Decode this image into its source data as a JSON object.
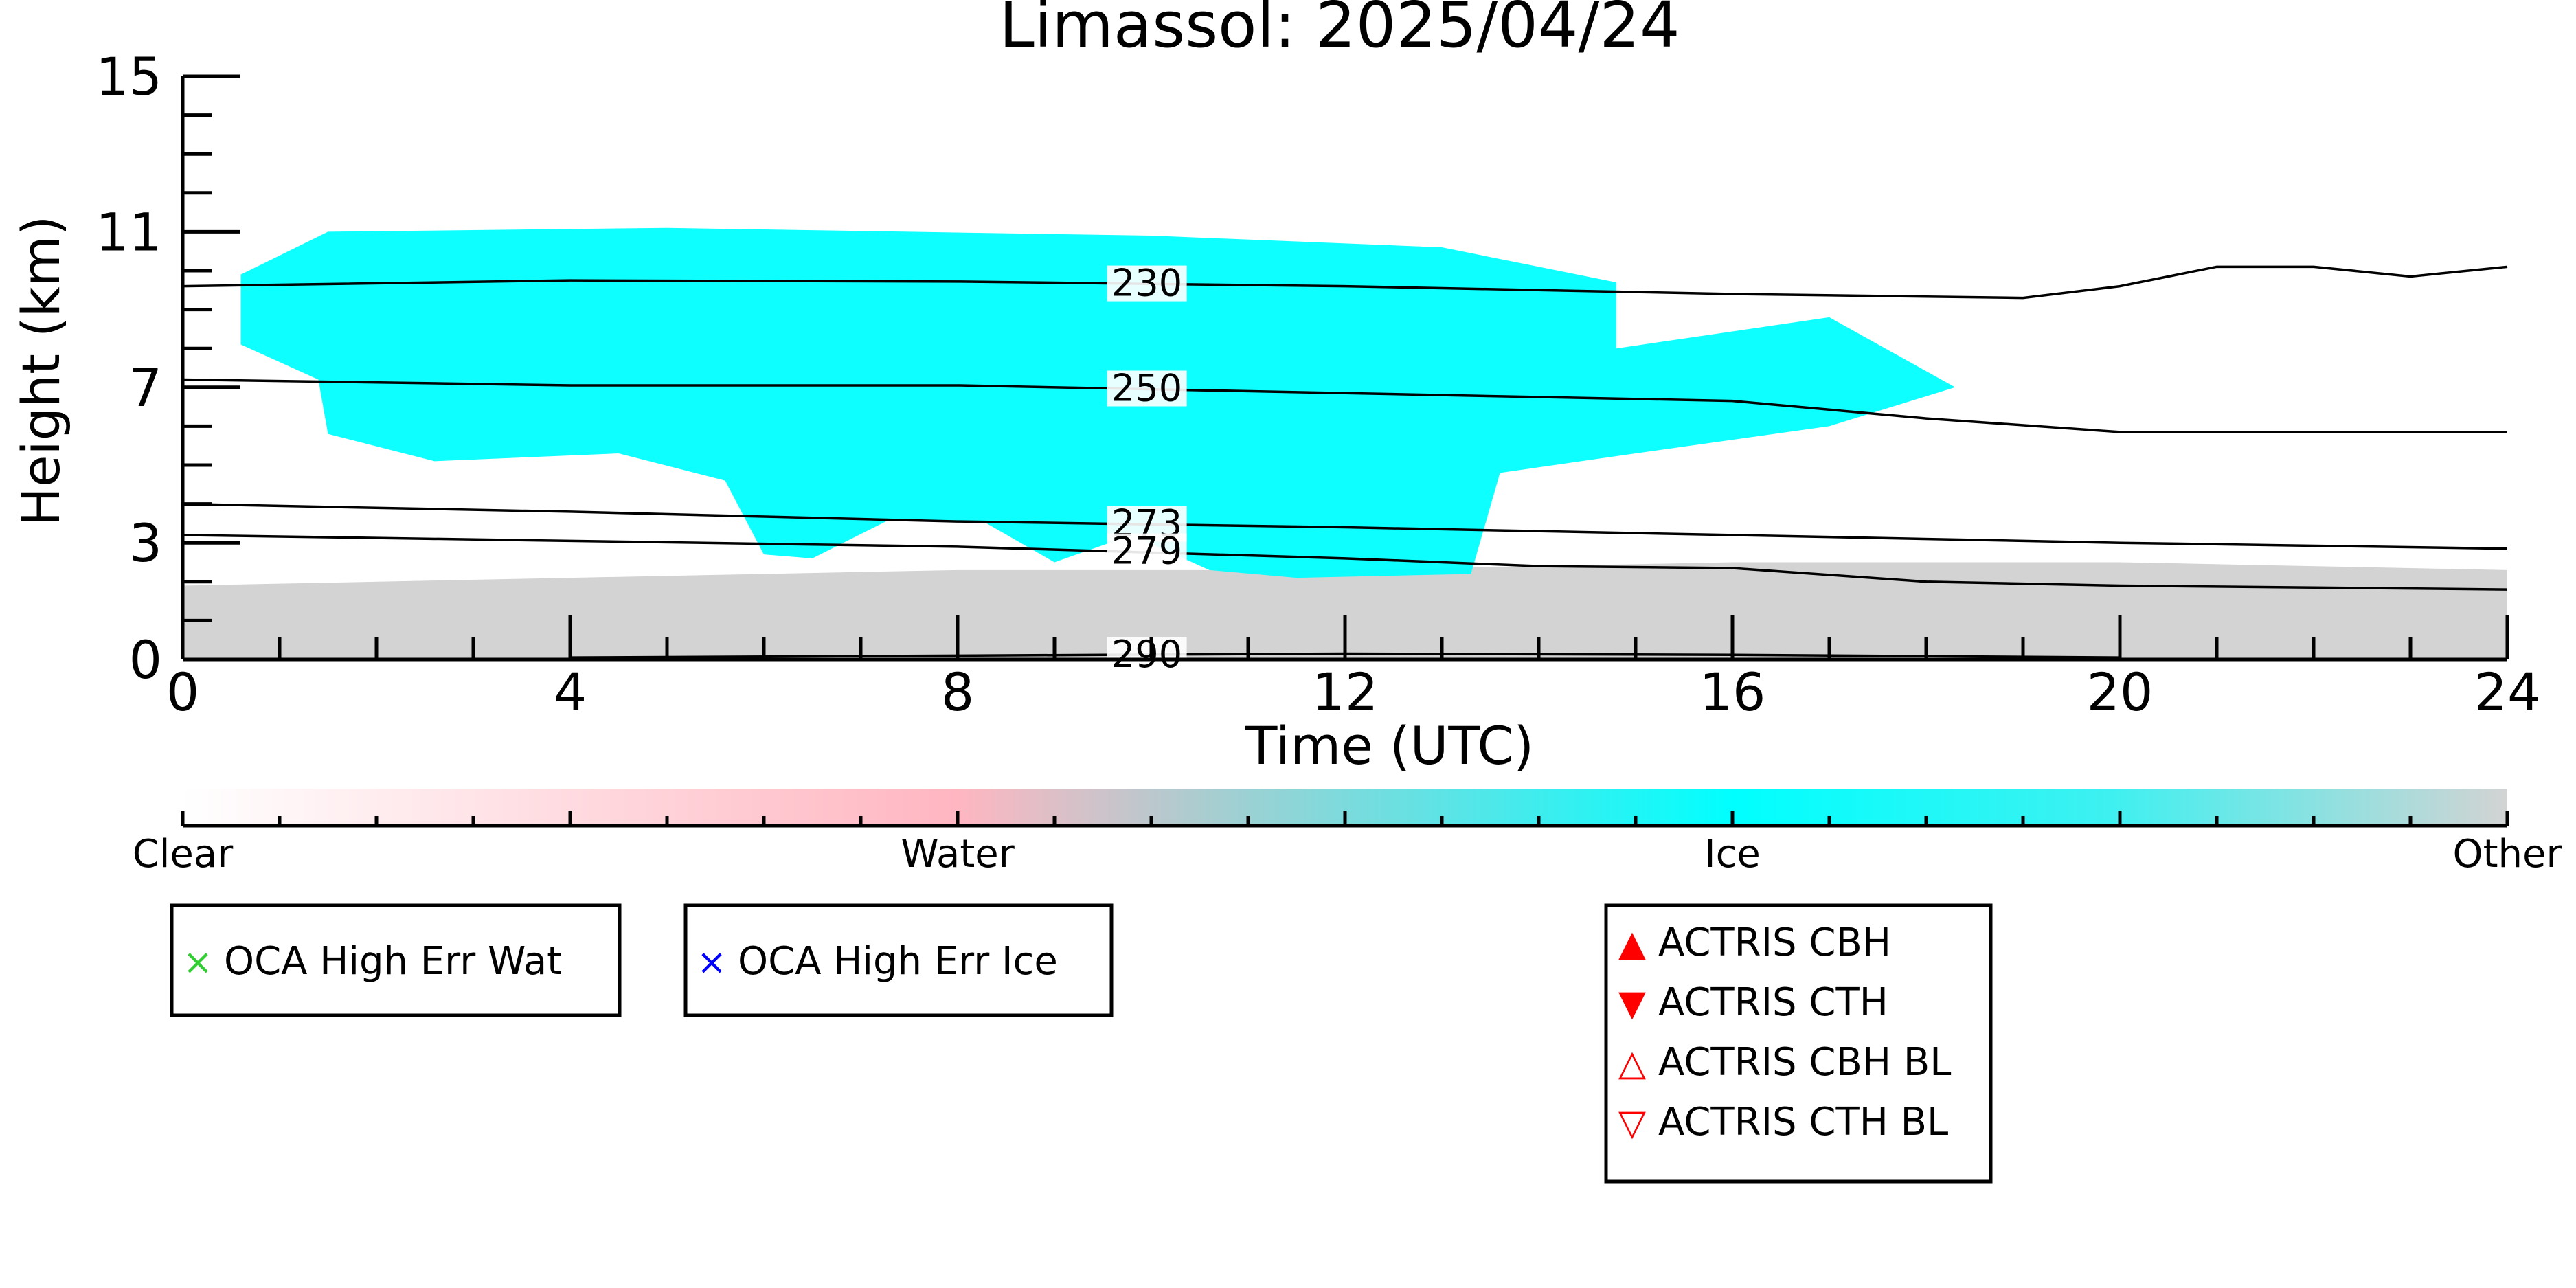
{
  "chart_data": {
    "type": "heatmap",
    "title": "Limassol: 2025/04/24",
    "xlabel": "Time (UTC)",
    "ylabel": "Height (km)",
    "xlim": [
      0,
      24
    ],
    "ylim": [
      0,
      15
    ],
    "x_ticks": [
      "0",
      "4",
      "8",
      "12",
      "16",
      "20",
      "24"
    ],
    "y_ticks": [
      "0",
      "3",
      "7",
      "11",
      "15"
    ],
    "colorbar": {
      "labels": [
        "Clear",
        "Water",
        "Ice",
        "Other"
      ],
      "colors": [
        "#ffffff",
        "#ffb6c1",
        "#00ffff",
        "#d3d3d3"
      ]
    },
    "contours": [
      {
        "label": "230",
        "label_x": 9.6,
        "points": [
          [
            0,
            9.6
          ],
          [
            4,
            9.75
          ],
          [
            8,
            9.72
          ],
          [
            12,
            9.6
          ],
          [
            16,
            9.4
          ],
          [
            19,
            9.3
          ],
          [
            20,
            9.6
          ],
          [
            21,
            10.1
          ],
          [
            22,
            10.1
          ],
          [
            23,
            9.85
          ],
          [
            24,
            10.1
          ]
        ]
      },
      {
        "label": "250",
        "label_x": 9.6,
        "points": [
          [
            0,
            7.2
          ],
          [
            4,
            7.05
          ],
          [
            8,
            7.05
          ],
          [
            12,
            6.85
          ],
          [
            16,
            6.65
          ],
          [
            18,
            6.2
          ],
          [
            20,
            5.85
          ],
          [
            22,
            5.85
          ],
          [
            24,
            5.85
          ]
        ]
      },
      {
        "label": "273",
        "label_x": 9.6,
        "points": [
          [
            0,
            4.0
          ],
          [
            4,
            3.8
          ],
          [
            8,
            3.55
          ],
          [
            12,
            3.4
          ],
          [
            16,
            3.2
          ],
          [
            20,
            3.0
          ],
          [
            24,
            2.85
          ]
        ]
      },
      {
        "label": "279",
        "label_x": 9.6,
        "points": [
          [
            0,
            3.2
          ],
          [
            4,
            3.05
          ],
          [
            8,
            2.9
          ],
          [
            12,
            2.6
          ],
          [
            14,
            2.4
          ],
          [
            16,
            2.35
          ],
          [
            18,
            2.0
          ],
          [
            20,
            1.9
          ],
          [
            22,
            1.85
          ],
          [
            24,
            1.8
          ]
        ]
      },
      {
        "label": "290",
        "label_x": 9.6,
        "points": [
          [
            4,
            0.05
          ],
          [
            8,
            0.1
          ],
          [
            12,
            0.15
          ],
          [
            16,
            0.12
          ],
          [
            20,
            0.05
          ]
        ]
      }
    ],
    "regions": [
      {
        "class": "Other",
        "points": [
          [
            0,
            1.9
          ],
          [
            4,
            2.1
          ],
          [
            8,
            2.3
          ],
          [
            12,
            2.3
          ],
          [
            16,
            2.5
          ],
          [
            20,
            2.5
          ],
          [
            24,
            2.3
          ],
          [
            24,
            0
          ],
          [
            0,
            0
          ]
        ]
      },
      {
        "class": "Ice",
        "points": [
          [
            0.6,
            9.9
          ],
          [
            1.5,
            11.0
          ],
          [
            5,
            11.1
          ],
          [
            10,
            10.9
          ],
          [
            13,
            10.6
          ],
          [
            14.8,
            9.7
          ],
          [
            14.8,
            8.0
          ],
          [
            17,
            8.8
          ],
          [
            18.3,
            7.0
          ],
          [
            17,
            6.0
          ],
          [
            15,
            5.3
          ],
          [
            13.6,
            4.8
          ],
          [
            13.3,
            2.2
          ],
          [
            11.5,
            2.1
          ],
          [
            10.6,
            2.3
          ],
          [
            9.8,
            3.2
          ],
          [
            9,
            2.5
          ],
          [
            8.3,
            3.5
          ],
          [
            7.3,
            3.6
          ],
          [
            6.5,
            2.6
          ],
          [
            6,
            2.7
          ],
          [
            5.6,
            4.6
          ],
          [
            4.5,
            5.3
          ],
          [
            2.6,
            5.1
          ],
          [
            1.5,
            5.8
          ],
          [
            1.4,
            7.2
          ],
          [
            0.6,
            8.1
          ]
        ]
      }
    ],
    "legends": [
      {
        "entries": [
          {
            "marker": "×",
            "color": "#32cd32",
            "label": "OCA High Err Wat"
          }
        ]
      },
      {
        "entries": [
          {
            "marker": "×",
            "color": "#0000ff",
            "label": "OCA High Err Ice"
          }
        ]
      },
      {
        "entries": [
          {
            "marker": "▲",
            "color": "#ff0000",
            "label": "ACTRIS CBH"
          },
          {
            "marker": "▼",
            "color": "#ff0000",
            "label": "ACTRIS CTH"
          },
          {
            "marker": "△",
            "color": "#ff0000",
            "label": "ACTRIS CBH BL"
          },
          {
            "marker": "▽",
            "color": "#ff0000",
            "label": "ACTRIS CTH BL"
          }
        ]
      }
    ]
  }
}
